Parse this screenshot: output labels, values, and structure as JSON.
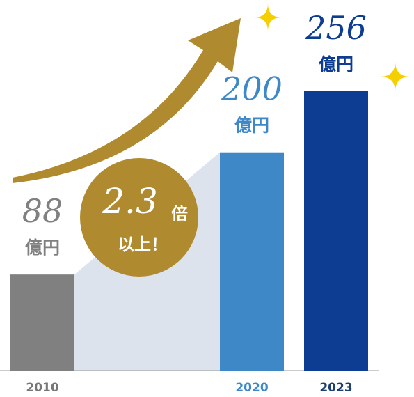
{
  "chart_data": {
    "type": "bar",
    "categories": [
      "2010",
      "2020",
      "2023"
    ],
    "values": [
      88,
      200,
      256
    ],
    "unit": "億円",
    "colors": [
      "#808080",
      "#3f88c8",
      "#0d3d92"
    ],
    "annotation": {
      "multiplier": 2.3,
      "unit": "倍",
      "text": "以上！"
    }
  }
}
